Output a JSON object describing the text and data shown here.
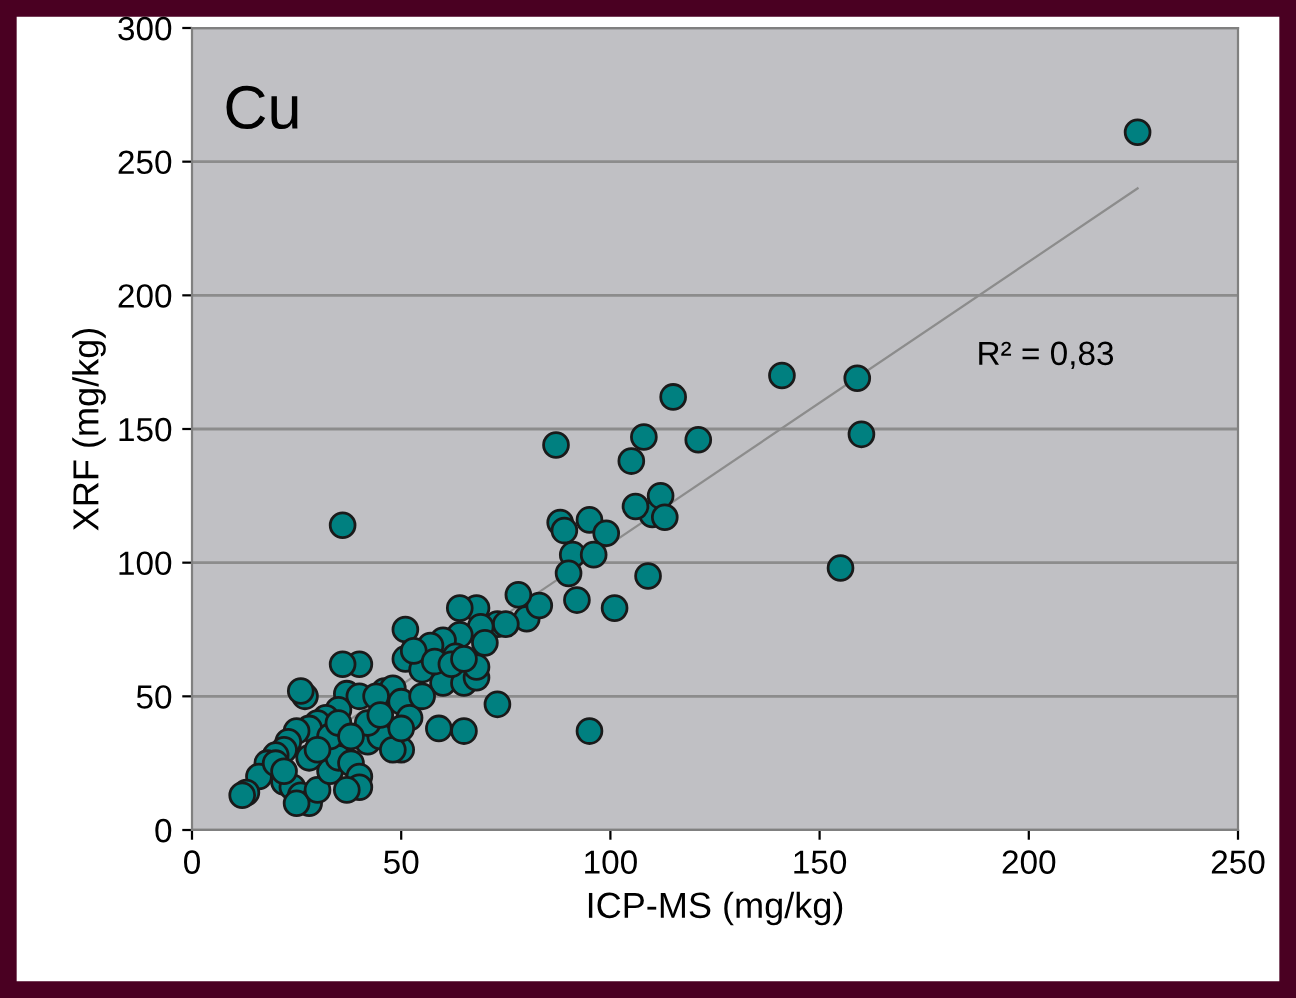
{
  "chart_data": {
    "type": "scatter",
    "title": "Cu",
    "xlabel": "ICP-MS (mg/kg)",
    "ylabel": "XRF (mg/kg)",
    "annotations": [
      "R² = 0,83"
    ],
    "xlim": [
      0,
      250
    ],
    "ylim": [
      0,
      300
    ],
    "xticks": [
      0,
      50,
      100,
      150,
      200,
      250
    ],
    "yticks": [
      0,
      50,
      100,
      150,
      200,
      250,
      300
    ],
    "grid": "y",
    "legend": false,
    "series": [
      {
        "marker": "circle",
        "color": "#008080",
        "x": [
          226,
          159,
          160,
          141,
          115,
          121,
          155,
          108,
          105,
          87,
          88,
          89,
          95,
          110,
          106,
          112,
          113,
          99,
          91,
          96,
          90,
          92,
          101,
          109,
          95,
          36,
          80,
          83,
          78,
          73,
          75,
          68,
          64,
          69,
          64,
          60,
          63,
          57,
          51,
          51,
          55,
          60,
          65,
          68,
          68,
          73,
          65,
          59,
          50,
          46,
          48,
          50,
          52,
          40,
          36,
          37,
          40,
          44,
          35,
          32,
          30,
          28,
          27,
          26,
          25,
          23,
          22,
          20,
          18,
          16,
          13,
          12,
          22,
          24,
          26,
          28,
          25,
          30,
          33,
          35,
          38,
          40,
          40,
          37,
          42,
          45,
          48,
          50,
          33,
          35,
          28,
          30,
          20,
          22,
          42,
          45,
          38,
          55,
          53,
          58,
          62,
          70,
          65
        ],
        "values": [
          261,
          169,
          148,
          170,
          162,
          146,
          98,
          147,
          138,
          144,
          115,
          112,
          116,
          118,
          121,
          125,
          117,
          111,
          103,
          103,
          96,
          86,
          83,
          95,
          37,
          114,
          79,
          84,
          88,
          77,
          77,
          83,
          83,
          76,
          73,
          71,
          65,
          69,
          75,
          64,
          60,
          55,
          55,
          57,
          61,
          47,
          37,
          38,
          30,
          52,
          53,
          48,
          42,
          62,
          62,
          51,
          50,
          50,
          45,
          42,
          40,
          38,
          50,
          52,
          37,
          33,
          30,
          28,
          25,
          20,
          14,
          13,
          18,
          16,
          13,
          10,
          10,
          15,
          22,
          27,
          25,
          20,
          16,
          15,
          33,
          35,
          30,
          38,
          35,
          40,
          27,
          30,
          25,
          22,
          40,
          43,
          35,
          50,
          67,
          63,
          62,
          70,
          64
        ]
      },
      {
        "type": "line",
        "color": "#8c8c8c",
        "x": [
          10,
          226
        ],
        "values": [
          12,
          240
        ]
      }
    ]
  }
}
